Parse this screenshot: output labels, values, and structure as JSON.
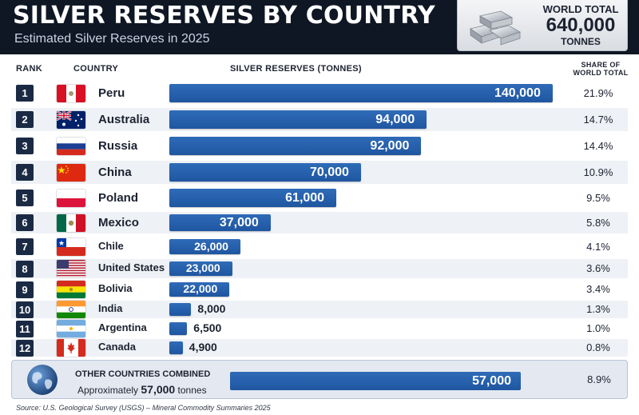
{
  "header": {
    "title": "SILVER RESERVES BY COUNTRY",
    "subtitle": "Estimated Silver Reserves in 2025"
  },
  "world_total": {
    "label": "WORLD TOTAL",
    "value": "640,000",
    "unit": "TONNES",
    "icon": "silver-ingots-icon"
  },
  "columns": {
    "rank": "RANK",
    "country": "COUNTRY",
    "reserves": "SILVER RESERVES (TONNES)",
    "share_line1": "SHARE OF",
    "share_line2": "WORLD TOTAL"
  },
  "colors": {
    "header_bg": "#0f1724",
    "bar": "#2563ac",
    "rank_box": "#1b2a44"
  },
  "chart_data": {
    "type": "bar",
    "orientation": "horizontal",
    "title": "SILVER RESERVES BY COUNTRY",
    "subtitle": "Estimated Silver Reserves in 2025",
    "xlabel": "SILVER RESERVES (TONNES)",
    "xlim": [
      0,
      140000
    ],
    "rows": [
      {
        "rank": "1",
        "country": "Peru",
        "value": 140000,
        "label": "140,000",
        "share": "21.9%",
        "flag": "peru-flag-icon"
      },
      {
        "rank": "2",
        "country": "Australia",
        "value": 94000,
        "label": "94,000",
        "share": "14.7%",
        "flag": "australia-flag-icon"
      },
      {
        "rank": "3",
        "country": "Russia",
        "value": 92000,
        "label": "92,000",
        "share": "14.4%",
        "flag": "russia-flag-icon"
      },
      {
        "rank": "4",
        "country": "China",
        "value": 70000,
        "label": "70,000",
        "share": "10.9%",
        "flag": "china-flag-icon"
      },
      {
        "rank": "5",
        "country": "Poland",
        "value": 61000,
        "label": "61,000",
        "share": "9.5%",
        "flag": "poland-flag-icon"
      },
      {
        "rank": "6",
        "country": "Mexico",
        "value": 37000,
        "label": "37,000",
        "share": "5.8%",
        "flag": "mexico-flag-icon"
      },
      {
        "rank": "7",
        "country": "Chile",
        "value": 26000,
        "label": "26,000",
        "share": "4.1%",
        "flag": "chile-flag-icon"
      },
      {
        "rank": "8",
        "country": "United States",
        "value": 23000,
        "label": "23,000",
        "share": "3.6%",
        "flag": "united-states-flag-icon"
      },
      {
        "rank": "9",
        "country": "Bolivia",
        "value": 22000,
        "label": "22,000",
        "share": "3.4%",
        "flag": "bolivia-flag-icon"
      },
      {
        "rank": "10",
        "country": "India",
        "value": 8000,
        "label": "8,000",
        "share": "1.3%",
        "flag": "india-flag-icon"
      },
      {
        "rank": "11",
        "country": "Argentina",
        "value": 6500,
        "label": "6,500",
        "share": "1.0%",
        "flag": "argentina-flag-icon"
      },
      {
        "rank": "12",
        "country": "Canada",
        "value": 4900,
        "label": "4,900",
        "share": "0.8%",
        "flag": "canada-flag-icon"
      }
    ],
    "other": {
      "title": "OTHER COUNTRIES COMBINED",
      "sub_prefix": "Approximately",
      "sub_value": "57,000",
      "sub_suffix": "tonnes",
      "value": 57000,
      "label": "57,000",
      "share": "8.9%",
      "icon": "globe-icon"
    }
  },
  "source": "Source: U.S. Geological Survey (USGS) – Mineral Commodity Summaries 2025"
}
